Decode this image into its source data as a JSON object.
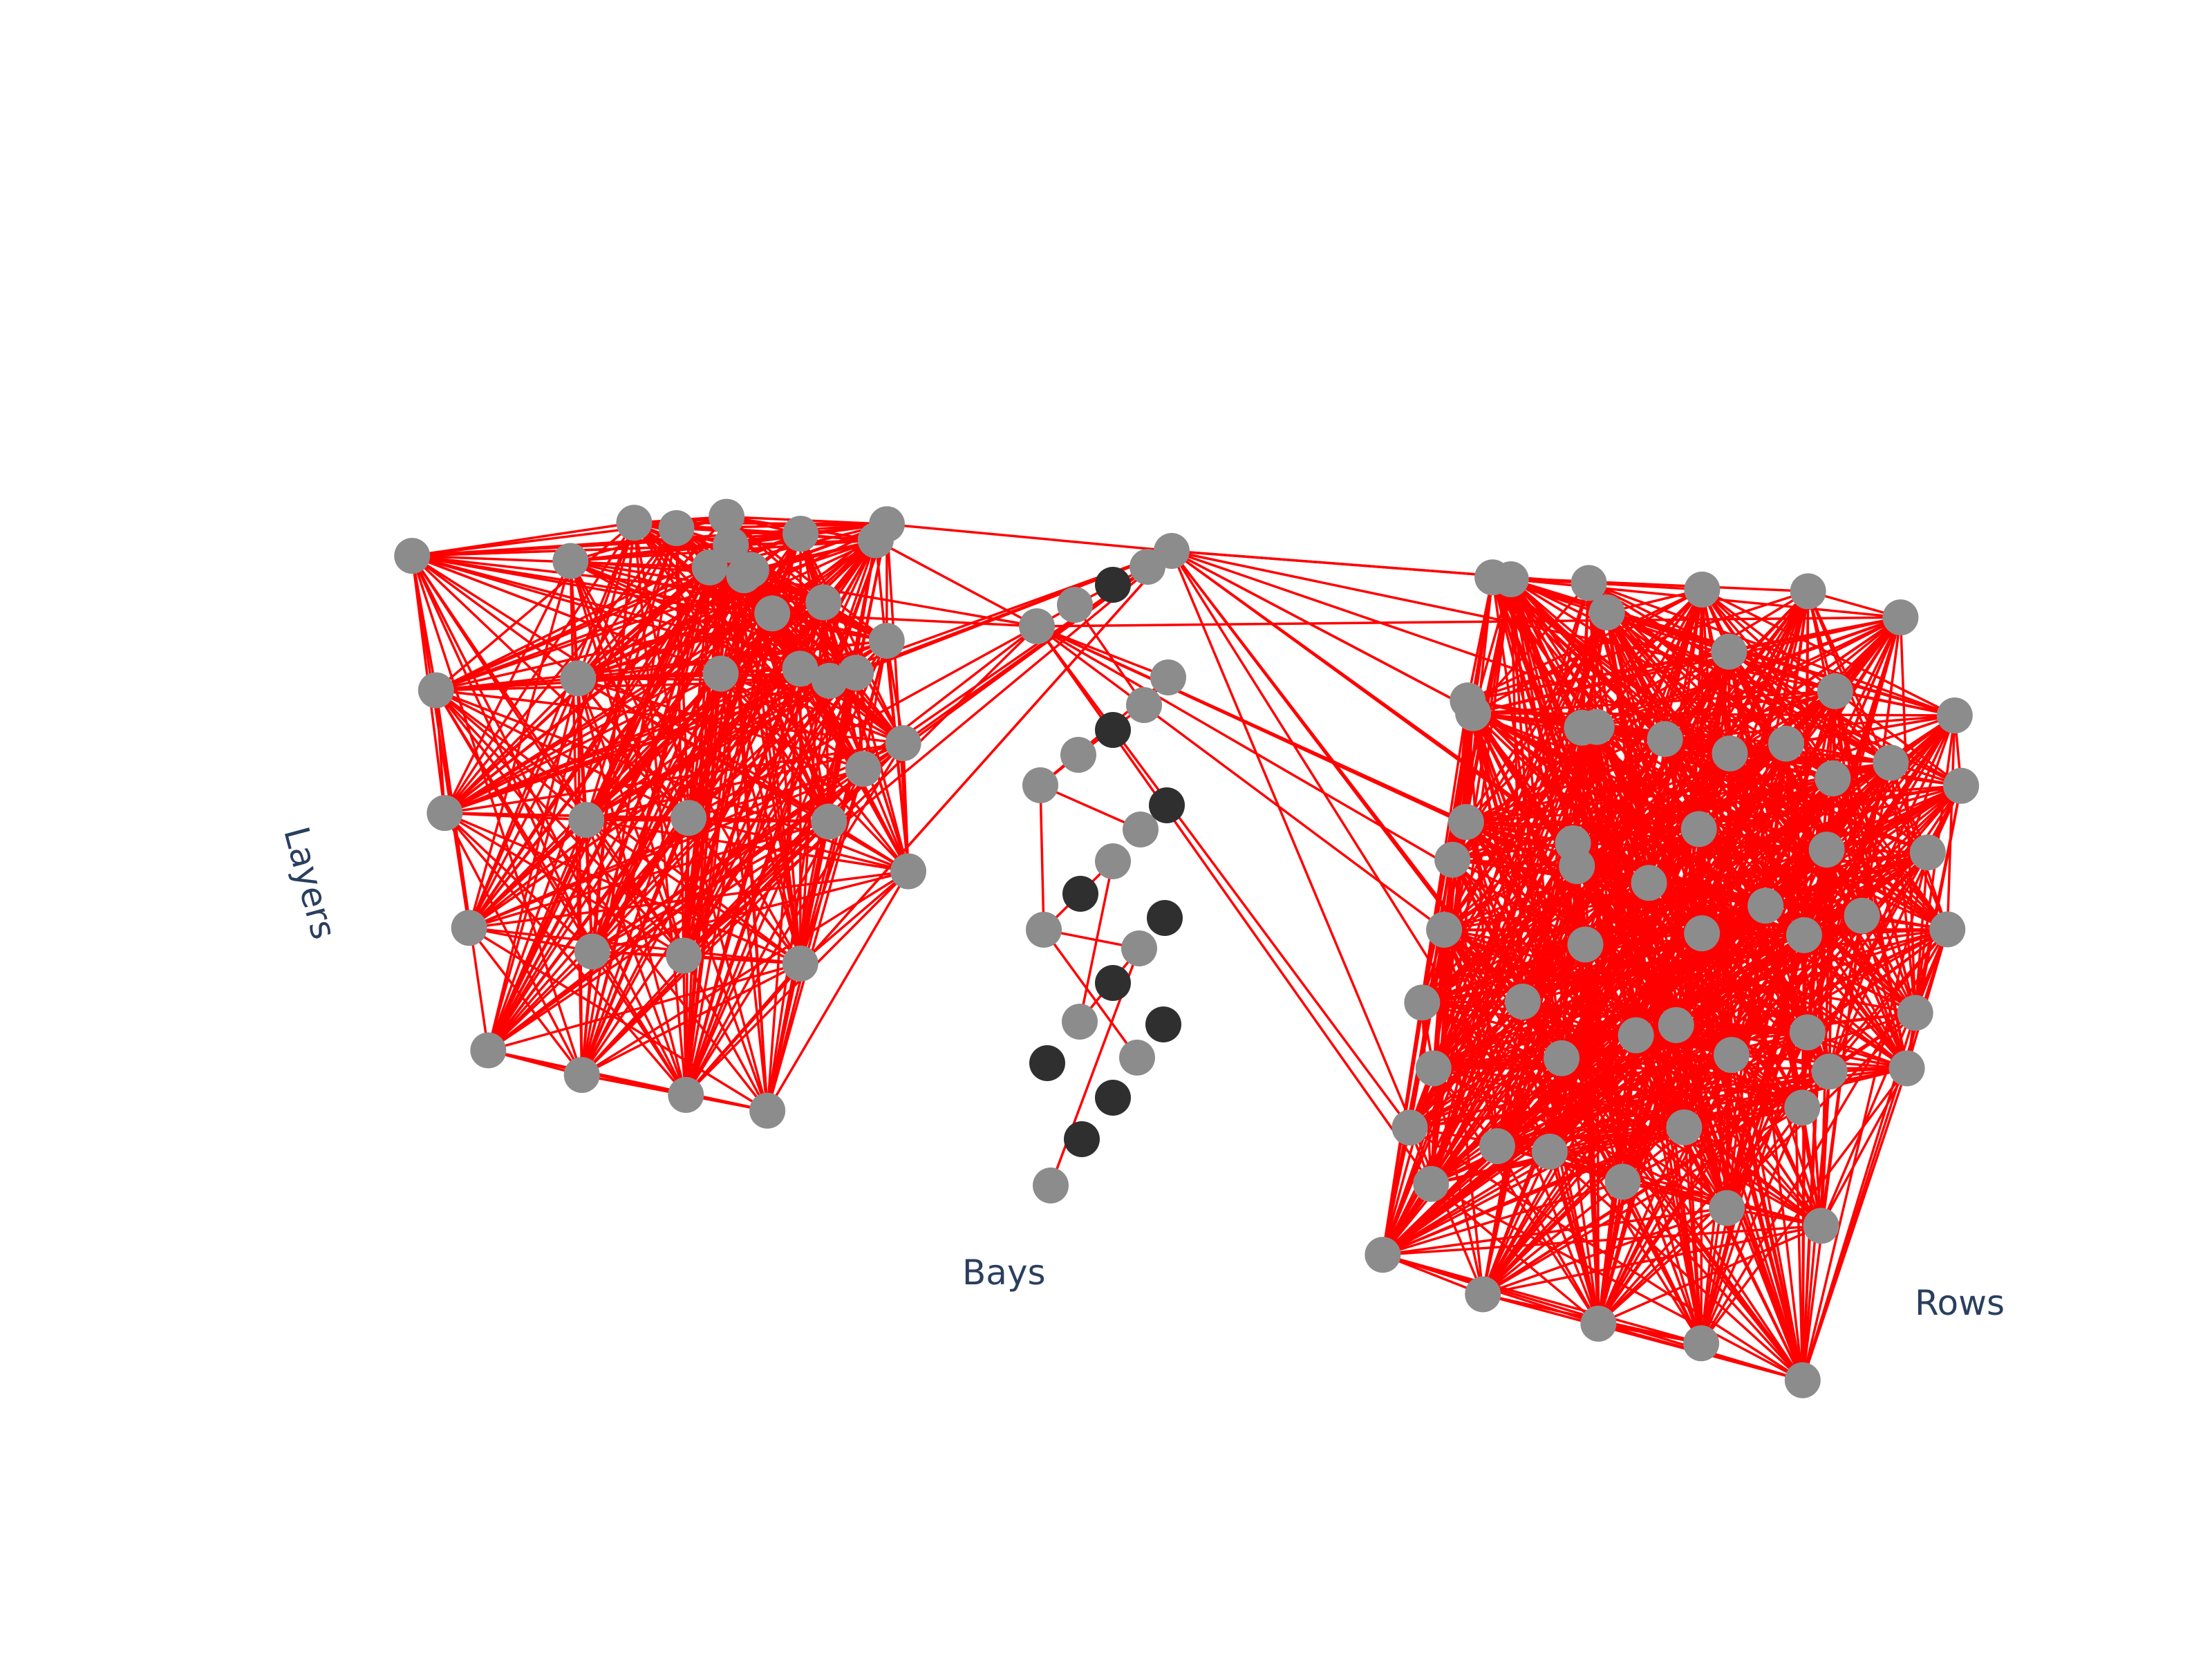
{
  "chart_data": {
    "type": "network-3d",
    "axis_labels": {
      "layers": "Layers",
      "bays": "Bays",
      "rows": "Rows"
    },
    "colors": {
      "edge": "#ff0000",
      "node_default": "#8c8c8c",
      "node_highlight": "#2f2f2f",
      "axis_text": "#2a3f5f"
    },
    "clusters": [
      {
        "name": "layers",
        "node_count": 36,
        "edge_style": "dense"
      },
      {
        "name": "bays",
        "node_count": 26,
        "highlighted_nodes": 11,
        "edge_style": "sparse"
      },
      {
        "name": "rows",
        "node_count": 60,
        "edge_style": "dense"
      }
    ]
  }
}
